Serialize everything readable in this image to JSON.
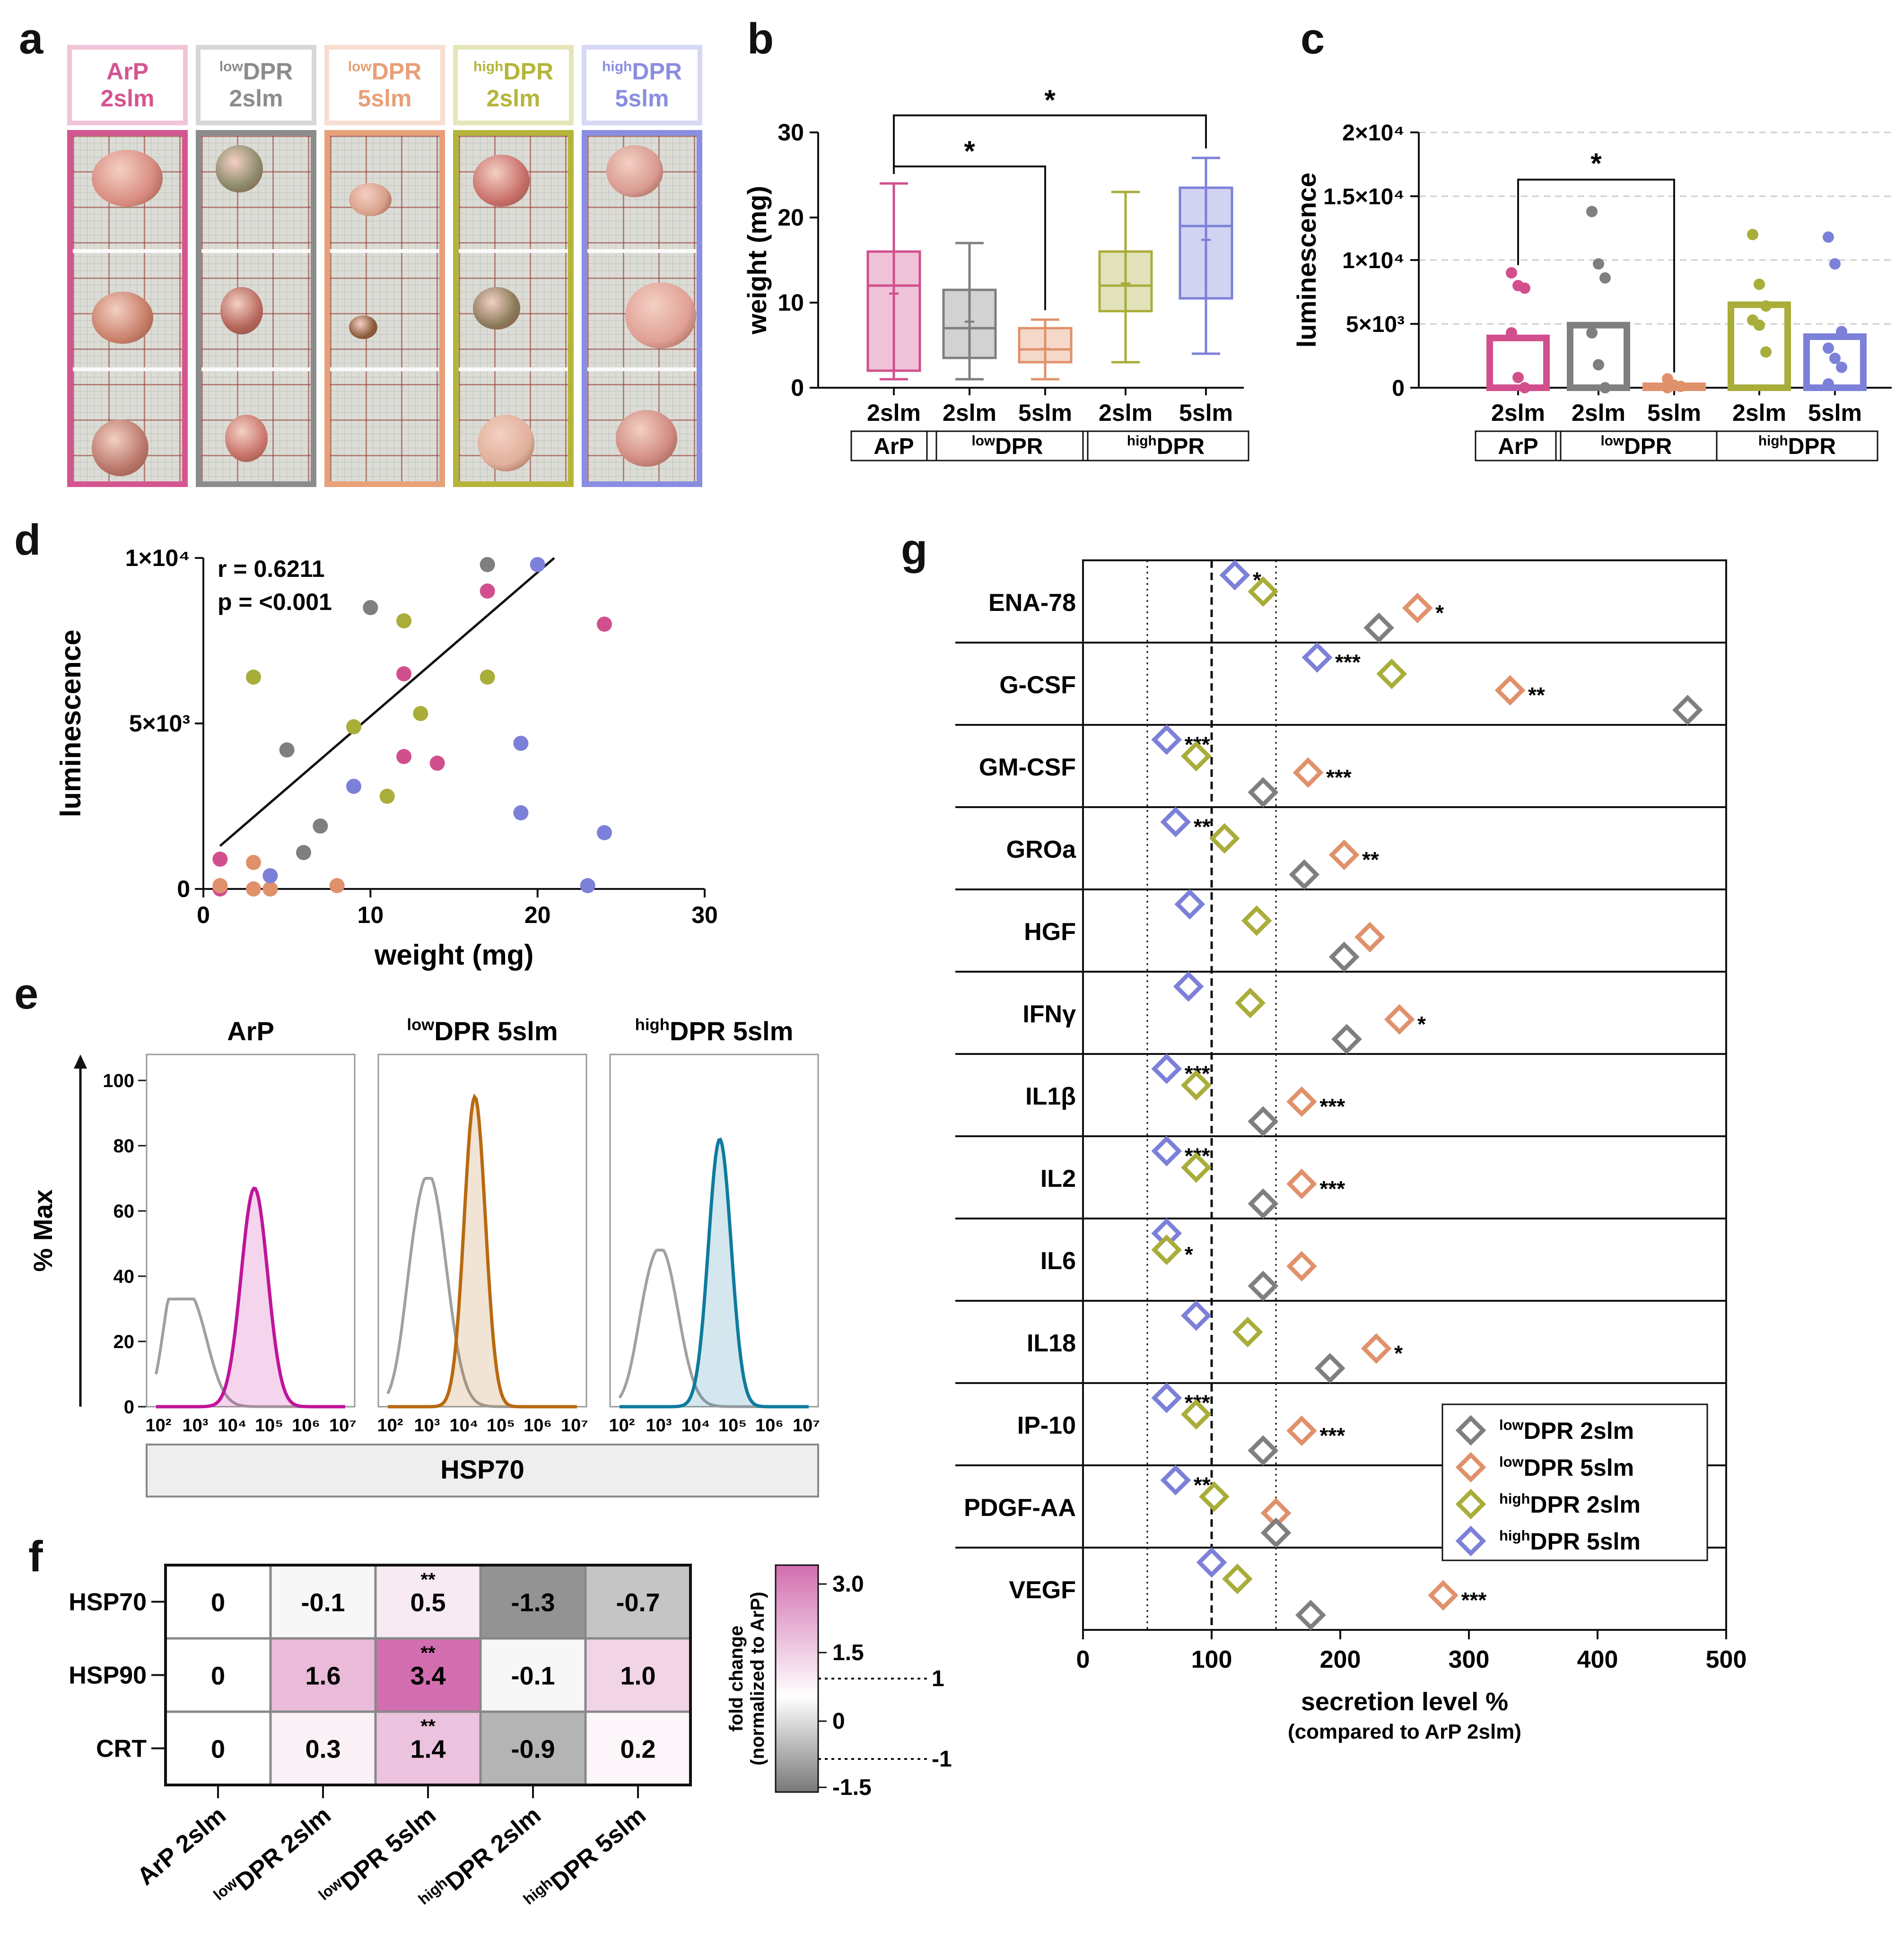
{
  "panels": {
    "a": "a",
    "b": "b",
    "c": "c",
    "d": "d",
    "e": "e",
    "f": "f",
    "g": "g"
  },
  "groups": [
    {
      "pre": "",
      "main": "ArP",
      "line2": "2slm",
      "color": "#d4558f"
    },
    {
      "pre": "low",
      "main": "DPR",
      "line2": "2slm",
      "color": "#8c8c8c"
    },
    {
      "pre": "low",
      "main": "DPR",
      "line2": "5slm",
      "color": "#e8a078"
    },
    {
      "pre": "high",
      "main": "DPR",
      "line2": "2slm",
      "color": "#b5b53a"
    },
    {
      "pre": "high",
      "main": "DPR",
      "line2": "5slm",
      "color": "#8a8ee0"
    }
  ],
  "colors": {
    "arp": "#d14f8c",
    "low2": "#7f7f7f",
    "low5": "#e0916b",
    "high2": "#a9ad3a",
    "high5": "#7c80d8",
    "arpHist": "#c0149a",
    "low5Hist": "#b86a10",
    "high5Hist": "#0f7b9e",
    "iso": "#a0a0a0"
  },
  "chart_data": [
    {
      "id": "b",
      "type": "box",
      "ylabel": "weight (mg)",
      "ylim": [
        0,
        30
      ],
      "yticks": [
        "0",
        "10",
        "20",
        "30"
      ],
      "xlabels": [
        "2slm",
        "2slm",
        "5slm",
        "2slm",
        "5slm"
      ],
      "groupLabels": [
        {
          "pre": "",
          "main": "ArP"
        },
        {
          "pre": "low",
          "main": "DPR"
        },
        {
          "pre": "high",
          "main": "DPR"
        }
      ],
      "boxes": [
        {
          "min": 1,
          "q1": 2,
          "median": 12,
          "q3": 16,
          "max": 24,
          "mean": 11
        },
        {
          "min": 1,
          "q1": 3.5,
          "median": 7,
          "q3": 11.5,
          "max": 17,
          "mean": 7.7
        },
        {
          "min": 1,
          "q1": 3,
          "median": 4.5,
          "q3": 7,
          "max": 8,
          "mean": 4.5
        },
        {
          "min": 3,
          "q1": 9,
          "median": 12,
          "q3": 16,
          "max": 23,
          "mean": 12.2
        },
        {
          "min": 4,
          "q1": 10.5,
          "median": 19,
          "q3": 23.5,
          "max": 27,
          "mean": 17.3
        }
      ],
      "sig": [
        {
          "from": 0,
          "to": 2,
          "y": 26,
          "label": "*"
        },
        {
          "from": 0,
          "to": 4,
          "y": 32,
          "label": "*"
        }
      ]
    },
    {
      "id": "c",
      "type": "bar",
      "ylabel": "luminescence",
      "ylim": [
        0,
        20000
      ],
      "yticks": [
        "0",
        "5×10³",
        "1×10⁴",
        "1.5×10⁴",
        "2×10⁴"
      ],
      "xlabels": [
        "2slm",
        "2slm",
        "5slm",
        "2slm",
        "5slm"
      ],
      "groupLabels": [
        {
          "pre": "",
          "main": "ArP"
        },
        {
          "pre": "low",
          "main": "DPR"
        },
        {
          "pre": "high",
          "main": "DPR"
        }
      ],
      "values": [
        3900,
        4900,
        150,
        6500,
        4000
      ],
      "points": [
        [
          9000,
          8000,
          7800,
          4300,
          800,
          0
        ],
        [
          13800,
          9700,
          8600,
          4300,
          1800,
          0
        ],
        [
          700,
          200,
          100,
          0
        ],
        [
          12000,
          8100,
          6400,
          5300,
          4900,
          2800
        ],
        [
          11800,
          9700,
          4400,
          3100,
          2300,
          1600,
          300
        ]
      ],
      "sig": [
        {
          "from": 0,
          "to": 2,
          "y": 16300,
          "label": "*"
        }
      ]
    },
    {
      "id": "d",
      "type": "scatter",
      "xlabel": "weight (mg)",
      "ylabel": "luminescence",
      "xlim": [
        0,
        30
      ],
      "ylim": [
        0,
        10000
      ],
      "xticks": [
        "0",
        "10",
        "20",
        "30"
      ],
      "yticks": [
        "0",
        "5×10³",
        "1×10⁴"
      ],
      "r_label": "r = 0.6211",
      "p_label": "p = <0.001",
      "fit": [
        [
          1,
          1300
        ],
        [
          21,
          10000
        ]
      ],
      "series": [
        {
          "name": "ArP",
          "colorKey": "arp",
          "points": [
            [
              1,
              900
            ],
            [
              1,
              0
            ],
            [
              12,
              6500
            ],
            [
              12,
              4000
            ],
            [
              14,
              3800
            ],
            [
              17,
              9000
            ],
            [
              24,
              8000
            ]
          ]
        },
        {
          "name": "low2",
          "colorKey": "low2",
          "points": [
            [
              5,
              4200
            ],
            [
              6,
              1100
            ],
            [
              7,
              1900
            ],
            [
              10,
              8500
            ],
            [
              17,
              9800
            ],
            [
              3,
              0
            ],
            [
              4,
              0
            ]
          ]
        },
        {
          "name": "low5",
          "colorKey": "low5",
          "points": [
            [
              1,
              100
            ],
            [
              3,
              800
            ],
            [
              3,
              0
            ],
            [
              8,
              100
            ],
            [
              4,
              0
            ]
          ]
        },
        {
          "name": "high2",
          "colorKey": "high2",
          "points": [
            [
              3,
              6400
            ],
            [
              9,
              4900
            ],
            [
              11,
              2800
            ],
            [
              12,
              8100
            ],
            [
              13,
              5300
            ],
            [
              17,
              6400
            ]
          ]
        },
        {
          "name": "high5",
          "colorKey": "high5",
          "points": [
            [
              4,
              400
            ],
            [
              9,
              3100
            ],
            [
              19,
              4400
            ],
            [
              19,
              2300
            ],
            [
              20,
              9800
            ],
            [
              23,
              100
            ],
            [
              24,
              1700
            ]
          ]
        }
      ]
    },
    {
      "id": "e",
      "type": "histogram",
      "ylabel": "% Max",
      "xlabel": "HSP70",
      "yticks": [
        "0",
        "20",
        "40",
        "60",
        "80",
        "100"
      ],
      "xticks": [
        "10²",
        "10³",
        "10⁴",
        "10⁵",
        "10⁶",
        "10⁷"
      ],
      "titles": [
        {
          "pre": "",
          "main": "ArP"
        },
        {
          "pre": "low",
          "main": "DPR 5slm"
        },
        {
          "pre": "high",
          "main": "DPR 5slm"
        }
      ],
      "histos": [
        {
          "colorKey": "arpHist",
          "isoPeak": 33,
          "isoPos": 0.9,
          "peak": 67,
          "peakPos": 2.6,
          "width": 0.35
        },
        {
          "colorKey": "low5Hist",
          "isoPeak": 70,
          "isoPos": 1.1,
          "peak": 95,
          "peakPos": 2.3,
          "width": 0.28
        },
        {
          "colorKey": "high5Hist",
          "isoPeak": 48,
          "isoPos": 1.1,
          "peak": 82,
          "peakPos": 2.65,
          "width": 0.3
        }
      ]
    },
    {
      "id": "f",
      "type": "heatmap",
      "rows": [
        "HSP70",
        "HSP90",
        "CRT"
      ],
      "cols": [
        "ArP 2slm",
        "DPR 2slm",
        "DPR 5slm",
        "DPR 2slm",
        "DPR 5slm"
      ],
      "colPre": [
        "",
        "low",
        "low",
        "high",
        "high"
      ],
      "values": [
        [
          "0",
          "-0.1",
          "0.5",
          "-1.3",
          "-0.7"
        ],
        [
          "0",
          "1.6",
          "3.4",
          "-0.1",
          "1.0"
        ],
        [
          "0",
          "0.3",
          "1.4",
          "-0.9",
          "0.2"
        ]
      ],
      "numeric": [
        [
          0,
          -0.1,
          0.5,
          -1.3,
          -0.7
        ],
        [
          0,
          1.6,
          3.4,
          -0.1,
          1.0
        ],
        [
          0,
          0.3,
          1.4,
          -0.9,
          0.2
        ]
      ],
      "stars": [
        [
          "",
          "",
          "**",
          "",
          ""
        ],
        [
          "",
          "",
          "**",
          "",
          ""
        ],
        [
          "",
          "",
          "**",
          "",
          ""
        ]
      ],
      "scale_label1": "fold change",
      "scale_label2": "(normalized to ArP)",
      "scale_ticks": [
        "3.0",
        "1.5",
        "0",
        "-1.5"
      ],
      "scale_lines": [
        "1",
        "-1"
      ]
    },
    {
      "id": "g",
      "type": "dot",
      "xlabel": "secretion level %",
      "xsub": "(compared to ArP 2slm)",
      "xlim": [
        0,
        500
      ],
      "xticks": [
        "0",
        "100",
        "200",
        "300",
        "400",
        "500"
      ],
      "rows": [
        "ENA-78",
        "G-CSF",
        "GM-CSF",
        "GROa",
        "HGF",
        "IFNγ",
        "IL1β",
        "IL2",
        "IL6",
        "IL18",
        "IP-10",
        "PDGF-AA",
        "VEGF"
      ],
      "legend": [
        {
          "pre": "low",
          "main": "DPR 2slm",
          "colorKey": "low2"
        },
        {
          "pre": "low",
          "main": "DPR 5slm",
          "colorKey": "low5"
        },
        {
          "pre": "high",
          "main": "DPR 2slm",
          "colorKey": "high2"
        },
        {
          "pre": "high",
          "main": "DPR 5slm",
          "colorKey": "high5"
        }
      ],
      "values": [
        {
          "high5": 118,
          "high2": 140,
          "low5": 260,
          "low2": 230,
          "s_high5": "*",
          "s_low5": "*"
        },
        {
          "high5": 182,
          "high2": 240,
          "low5": 332,
          "low2": 470,
          "s_high5": "***",
          "s_low5": "**"
        },
        {
          "high5": 65,
          "high2": 88,
          "low5": 175,
          "low2": 140,
          "s_high5": "***",
          "s_low5": "***"
        },
        {
          "high5": 72,
          "high2": 110,
          "low5": 203,
          "low2": 172,
          "s_high5": "**",
          "s_low5": "**"
        },
        {
          "high5": 83,
          "high2": 135,
          "low5": 223,
          "low2": 203
        },
        {
          "high5": 82,
          "high2": 130,
          "low5": 246,
          "low2": 205,
          "s_low5": "*"
        },
        {
          "high5": 65,
          "high2": 88,
          "low5": 170,
          "low2": 140,
          "s_high5": "***",
          "s_low5": "***"
        },
        {
          "high5": 65,
          "high2": 88,
          "low5": 170,
          "low2": 140,
          "s_high5": "***",
          "s_low5": "***"
        },
        {
          "high5": 65,
          "high2": 65,
          "low5": 170,
          "low2": 140,
          "s_high2": "*"
        },
        {
          "high5": 88,
          "high2": 128,
          "low5": 228,
          "low2": 192,
          "s_low5": "*"
        },
        {
          "high5": 65,
          "high2": 88,
          "low5": 170,
          "low2": 140,
          "s_high5": "***",
          "s_low5": "***"
        },
        {
          "high5": 72,
          "high2": 102,
          "low5": 150,
          "low2": 150,
          "s_high5": "**"
        },
        {
          "high5": 100,
          "high2": 120,
          "low5": 280,
          "low2": 177,
          "s_low5": "***"
        }
      ]
    }
  ]
}
